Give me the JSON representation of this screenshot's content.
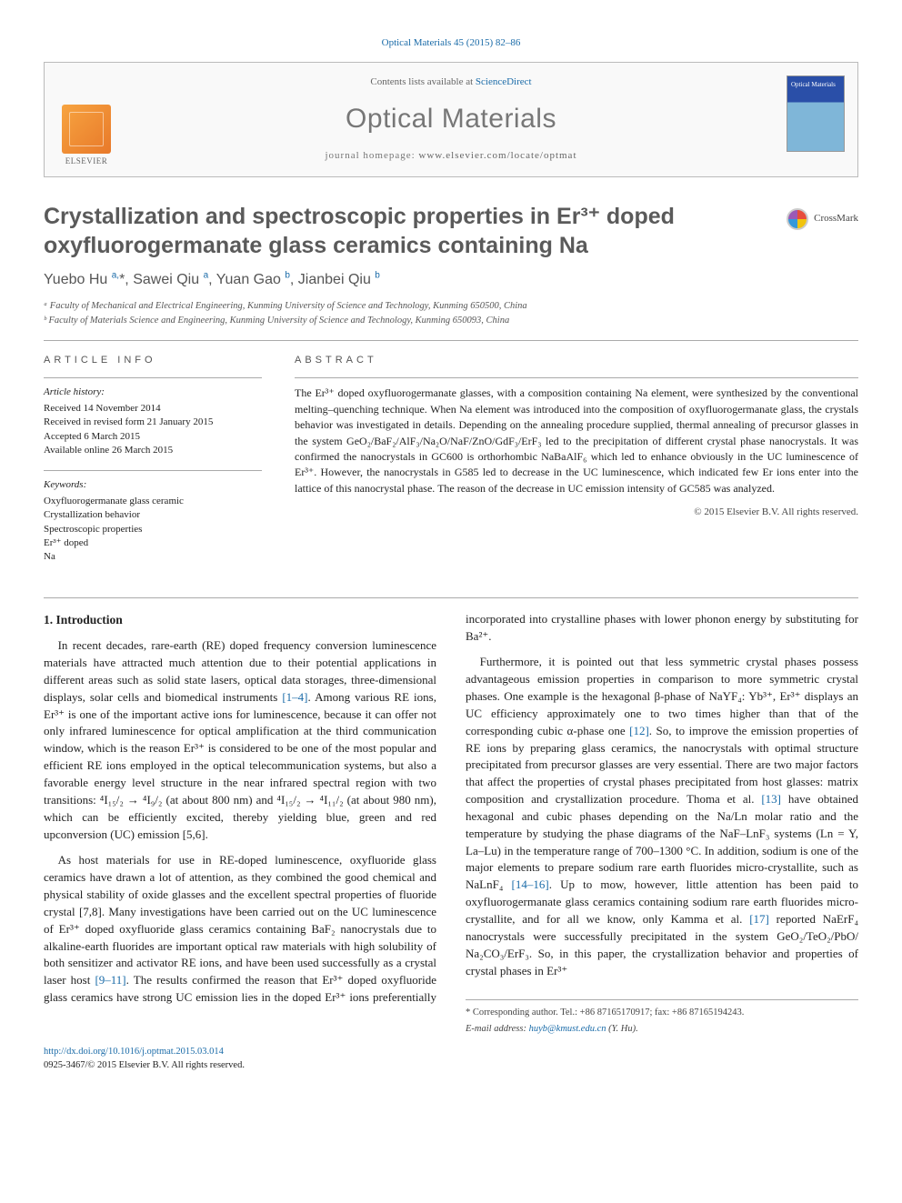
{
  "journal_ref": "Optical Materials 45 (2015) 82–86",
  "header": {
    "contents_prefix": "Contents lists available at ",
    "contents_link": "ScienceDirect",
    "journal_name": "Optical Materials",
    "homepage_prefix": "journal homepage: ",
    "homepage_url": "www.elsevier.com/locate/optmat",
    "publisher": "ELSEVIER",
    "cover_label": "Optical Materials"
  },
  "crossmark": "CrossMark",
  "title": "Crystallization and spectroscopic properties in Er³⁺ doped oxyfluorogermanate glass ceramics containing Na",
  "authors_html": "Yuebo Hu <sup>a,</sup>*, Sawei Qiu <sup>a</sup>, Yuan Gao <sup>b</sup>, Jianbei Qiu <sup>b</sup>",
  "affiliations": [
    "ᵃ Faculty of Mechanical and Electrical Engineering, Kunming University of Science and Technology, Kunming 650500, China",
    "ᵇ Faculty of Materials Science and Engineering, Kunming University of Science and Technology, Kunming 650093, China"
  ],
  "info": {
    "head": "ARTICLE INFO",
    "history_title": "Article history:",
    "history": [
      "Received 14 November 2014",
      "Received in revised form 21 January 2015",
      "Accepted 6 March 2015",
      "Available online 26 March 2015"
    ],
    "keywords_title": "Keywords:",
    "keywords": [
      "Oxyfluorogermanate glass ceramic",
      "Crystallization behavior",
      "Spectroscopic properties",
      "Er³⁺ doped",
      "Na"
    ]
  },
  "abstract": {
    "head": "ABSTRACT",
    "body": "The Er³⁺ doped oxyfluorogermanate glasses, with a composition containing Na element, were synthesized by the conventional melting–quenching technique. When Na element was introduced into the composition of oxyfluorogermanate glass, the crystals behavior was investigated in details. Depending on the annealing procedure supplied, thermal annealing of precursor glasses in the system GeO₂/BaF₂/AlF₃/Na₂O/NaF/ZnO/GdF₃/ErF₃ led to the precipitation of different crystal phase nanocrystals. It was confirmed the nanocrystals in GC600 is orthorhombic NaBaAlF₆ which led to enhance obviously in the UC luminescence of Er³⁺. However, the nanocrystals in G585 led to decrease in the UC luminescence, which indicated few Er ions enter into the lattice of this nanocrystal phase. The reason of the decrease in UC emission intensity of GC585 was analyzed.",
    "copyright": "© 2015 Elsevier B.V. All rights reserved."
  },
  "section_heading": "1. Introduction",
  "paragraphs": [
    "In recent decades, rare-earth (RE) doped frequency conversion luminescence materials have attracted much attention due to their potential applications in different areas such as solid state lasers, optical data storages, three-dimensional displays, solar cells and biomedical instruments [1–4]. Among various RE ions, Er³⁺ is one of the important active ions for luminescence, because it can offer not only infrared luminescence for optical amplification at the third communication window, which is the reason Er³⁺ is considered to be one of the most popular and efficient RE ions employed in the optical telecommunication systems, but also a favorable energy level structure in the near infrared spectral region with two transitions: ⁴I₁₅/₂ → ⁴I₉/₂ (at about 800 nm) and ⁴I₁₅/₂ → ⁴I₁₁/₂ (at about 980 nm), which can be efficiently excited, thereby yielding blue, green and red upconversion (UC) emission [5,6].",
    "As host materials for use in RE-doped luminescence, oxyfluoride glass ceramics have drawn a lot of attention, as they combined the good chemical and physical stability of oxide glasses and the excellent spectral properties of fluoride crystal [7,8]. Many investigations have been carried out on the UC luminescence of Er³⁺ doped oxyfluoride glass ceramics containing BaF₂ nanocrystals due to alkaline-earth fluorides are important optical raw materials with high solubility of both sensitizer and activator RE ions, and have been used successfully as a crystal laser host [9–11]. The results confirmed the reason that Er³⁺ doped oxyfluoride glass ceramics have strong UC emission lies in the doped Er³⁺ ions preferentially incorporated into crystalline phases with lower phonon energy by substituting for Ba²⁺.",
    "Furthermore, it is pointed out that less symmetric crystal phases possess advantageous emission properties in comparison to more symmetric crystal phases. One example is the hexagonal β-phase of NaYF₄: Yb³⁺, Er³⁺ displays an UC efficiency approximately one to two times higher than that of the corresponding cubic α-phase one [12]. So, to improve the emission properties of RE ions by preparing glass ceramics, the nanocrystals with optimal structure precipitated from precursor glasses are very essential. There are two major factors that affect the properties of crystal phases precipitated from host glasses: matrix composition and crystallization procedure. Thoma et al. [13] have obtained hexagonal and cubic phases depending on the Na/Ln molar ratio and the temperature by studying the phase diagrams of the NaF–LnF₃ systems (Ln = Y, La–Lu) in the temperature range of 700–1300 °C. In addition, sodium is one of the major elements to prepare sodium rare earth fluorides micro-crystallite, such as NaLnF₄ [14–16]. Up to mow, however, little attention has been paid to oxyfluorogermanate glass ceramics containing sodium rare earth fluorides micro-crystallite, and for all we know, only Kamma et al. [17] reported NaErF₄ nanocrystals were successfully precipitated in the system GeO₂/TeO₂/PbO/ Na₂CO₃/ErF₃. So, in this paper, the crystallization behavior and properties of crystal phases in Er³⁺"
  ],
  "footer": {
    "corr": "* Corresponding author. Tel.: +86 87165170917; fax: +86 87165194243.",
    "email_label": "E-mail address: ",
    "email": "huyb@kmust.edu.cn",
    "email_who": " (Y. Hu).",
    "doi": "http://dx.doi.org/10.1016/j.optmat.2015.03.014",
    "issn": "0925-3467/© 2015 Elsevier B.V. All rights reserved."
  }
}
